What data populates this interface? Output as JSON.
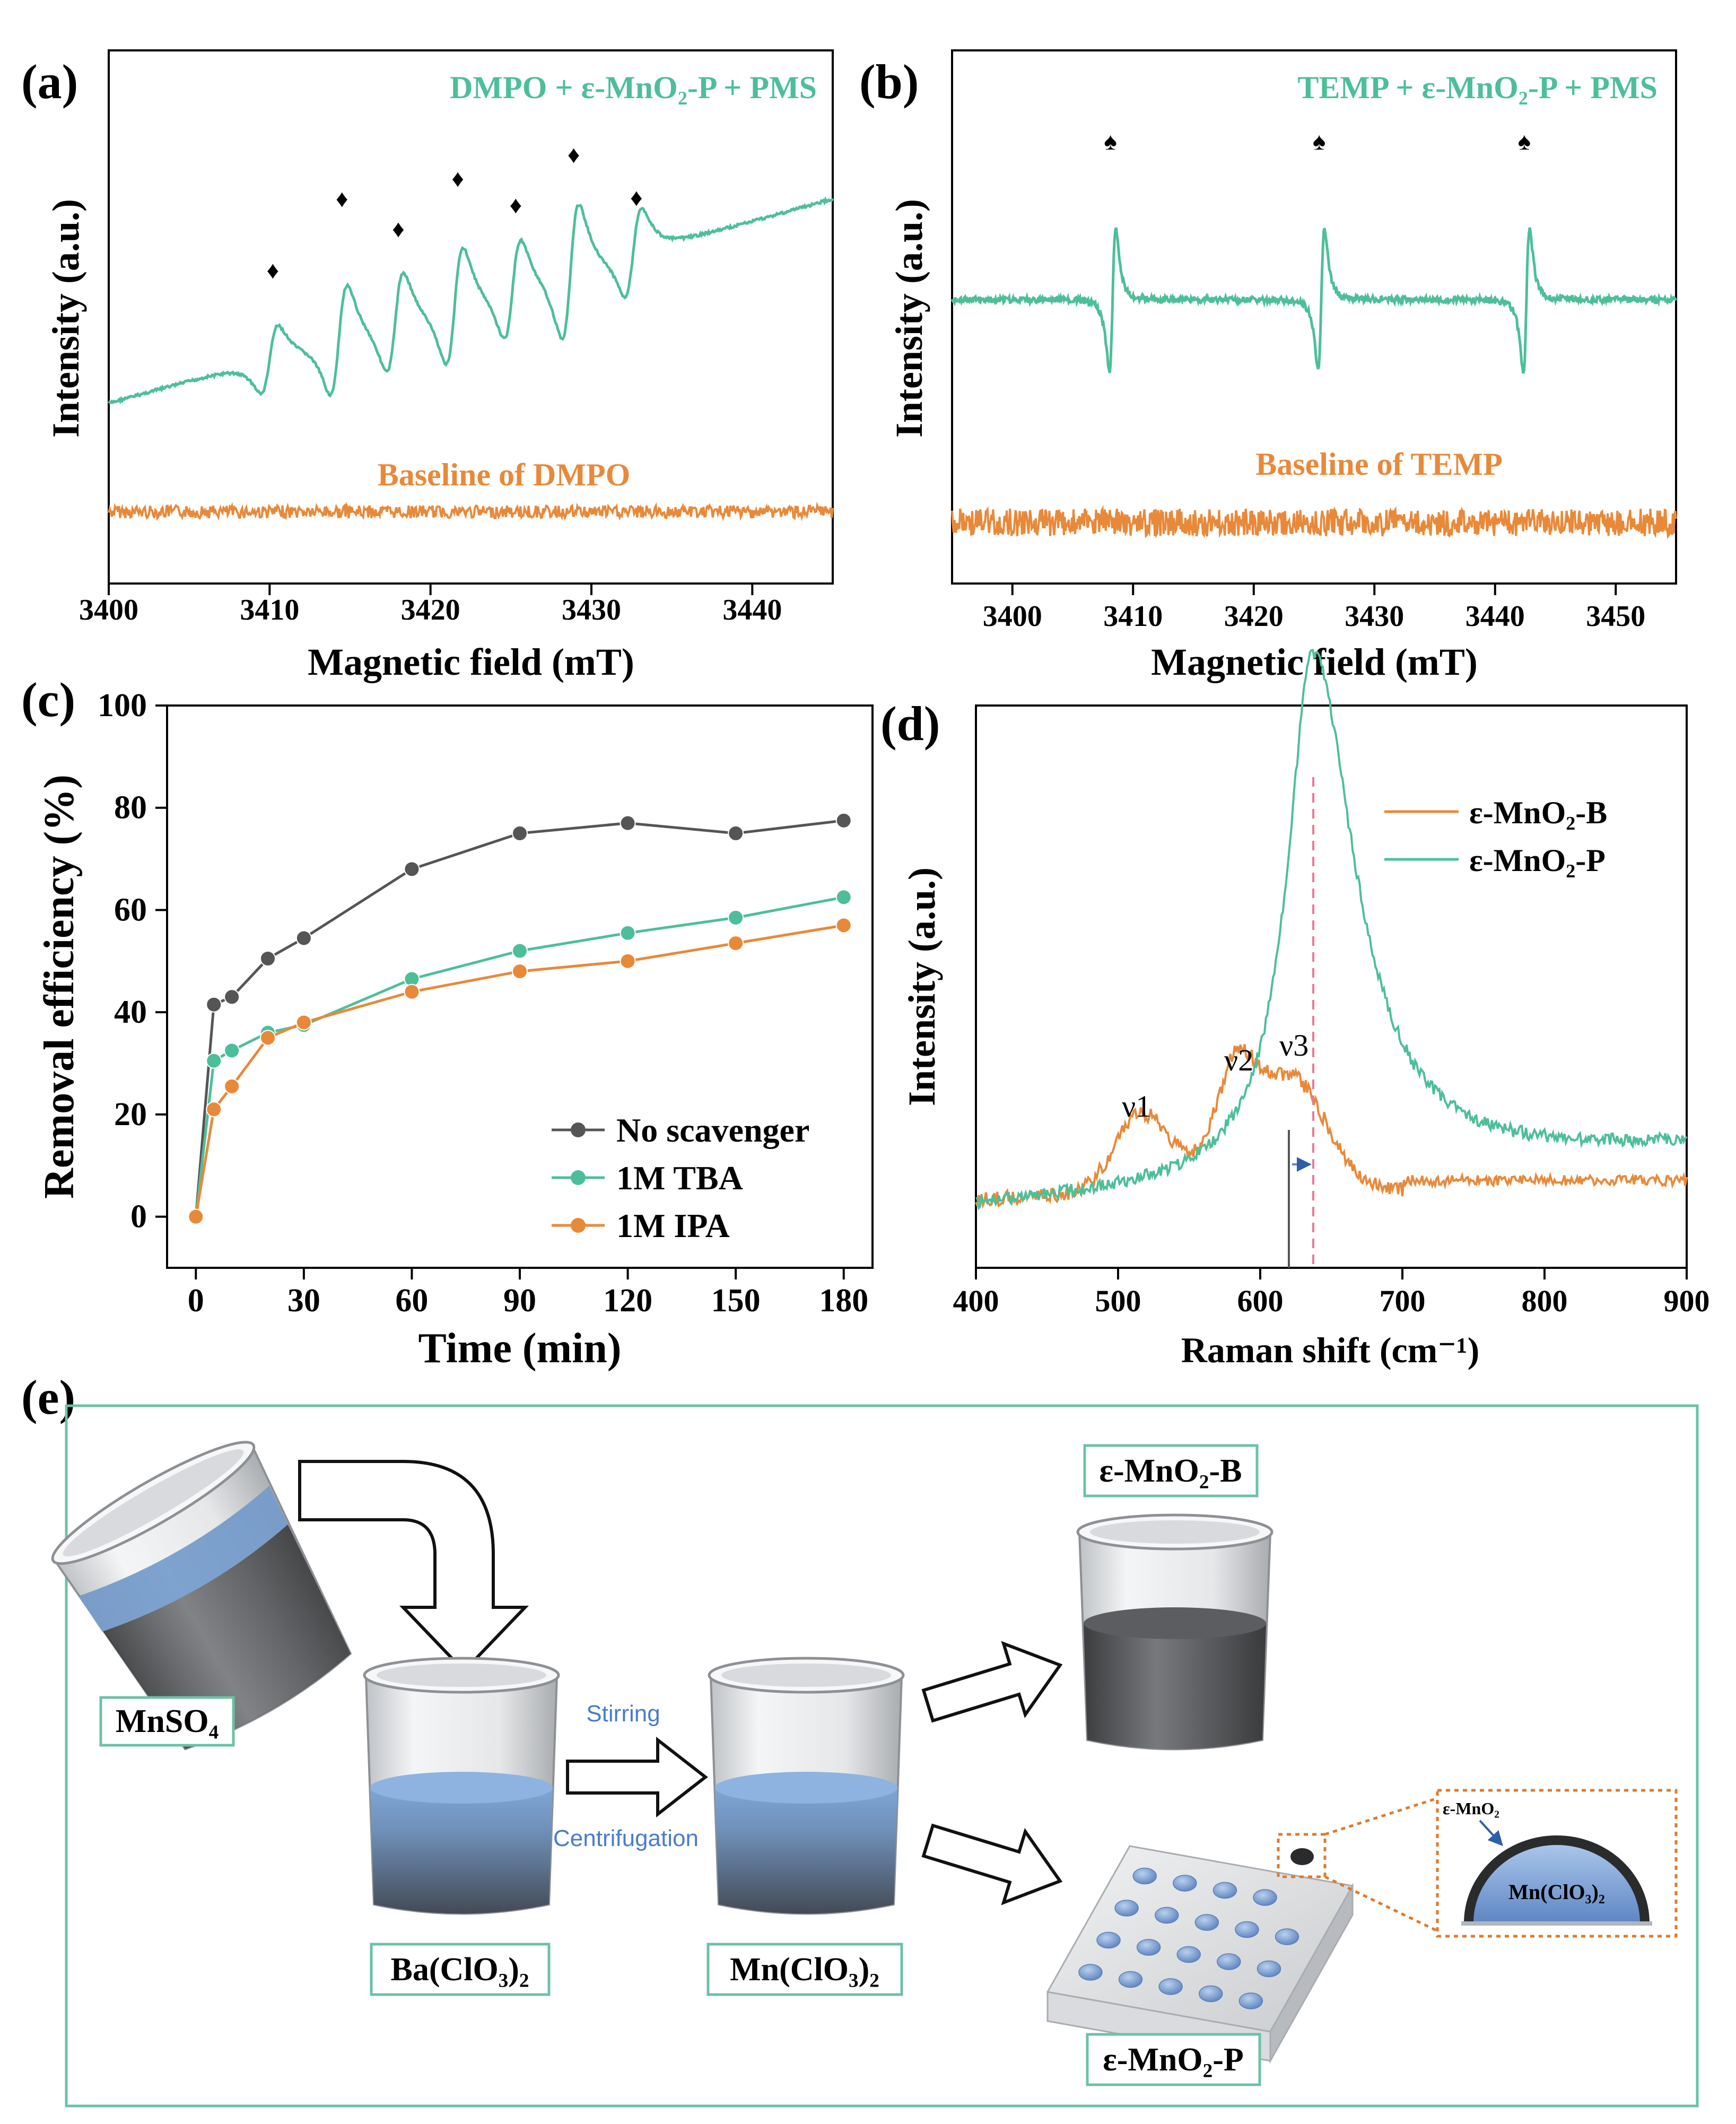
{
  "colors": {
    "green": "#4dbf98",
    "orange": "#e8893a",
    "gray": "#555555",
    "pink": "#e87a96",
    "blue": "#4a7cc9",
    "box": "#6cc2a3",
    "dotted": "#e07a2a"
  },
  "panels": {
    "a": {
      "label": "(a)"
    },
    "b": {
      "label": "(b)"
    },
    "c": {
      "label": "(c)"
    },
    "d": {
      "label": "(d)"
    },
    "e": {
      "label": "(e)"
    }
  },
  "chart_data": [
    {
      "id": "a",
      "type": "line",
      "xlabel": "Magnetic field (mT)",
      "ylabel": "Intensity (a.u.)",
      "xlim": [
        3400,
        3445
      ],
      "xticks": [
        3400,
        3410,
        3420,
        3430,
        3440
      ],
      "series": [
        {
          "name": "DMPO + ε-MnO₂-P + PMS",
          "color": "green",
          "peaks": [
            3410,
            3414.3,
            3417.8,
            3421.5,
            3425.1,
            3428.7,
            3432.6
          ]
        },
        {
          "name": "Baseline of DMPO",
          "color": "orange"
        }
      ],
      "marker_symbol": "♦"
    },
    {
      "id": "b",
      "type": "line",
      "xlabel": "Magnetic field (mT)",
      "ylabel": "Intensity (a.u.)",
      "xlim": [
        3395,
        3455
      ],
      "xticks": [
        3400,
        3410,
        3420,
        3430,
        3440,
        3450
      ],
      "series": [
        {
          "name": "TEMP + ε-MnO₂-P + PMS",
          "color": "green",
          "peaks": [
            3408.3,
            3425.6,
            3442.6
          ]
        },
        {
          "name": "Baseline of TEMP",
          "color": "orange"
        }
      ],
      "marker_symbol": "♠"
    },
    {
      "id": "c",
      "type": "line",
      "xlabel": "Time (min)",
      "ylabel": "Removal efficiency (%)",
      "xlim": [
        -8,
        188
      ],
      "ylim": [
        -10,
        100
      ],
      "xticks": [
        0,
        30,
        60,
        90,
        120,
        150,
        180
      ],
      "yticks": [
        0,
        20,
        40,
        60,
        80,
        100
      ],
      "x": [
        0,
        5,
        10,
        20,
        30,
        60,
        90,
        120,
        150,
        180
      ],
      "series": [
        {
          "name": "No scavenger",
          "color": "gray",
          "values": [
            0,
            41.5,
            43,
            50.5,
            54.5,
            68,
            75,
            77,
            75,
            77.5
          ]
        },
        {
          "name": "1M TBA",
          "color": "green",
          "values": [
            0,
            30.5,
            32.5,
            36,
            37.5,
            46.5,
            52,
            55.5,
            58.5,
            62.5
          ]
        },
        {
          "name": "1M IPA",
          "color": "orange",
          "values": [
            0,
            21,
            25.5,
            35,
            38,
            44,
            48,
            50,
            53.5,
            57
          ]
        }
      ]
    },
    {
      "id": "d",
      "type": "line",
      "xlabel": "Raman shift (cm⁻¹)",
      "ylabel": "Intensity (a.u.)",
      "xlim": [
        400,
        900
      ],
      "xticks": [
        400,
        500,
        600,
        700,
        800,
        900
      ],
      "series": [
        {
          "name": "ε-MnO₂-B",
          "color": "orange"
        },
        {
          "name": "ε-MnO₂-P",
          "color": "green"
        }
      ],
      "annotations": [
        "ν1",
        "ν2",
        "ν3"
      ],
      "reference_lines": [
        620,
        637
      ]
    }
  ],
  "schematic": {
    "labels": {
      "mnso4": "MnSO₄",
      "baclo3": "Ba(ClO₃)₂",
      "mnclo3": "Mn(ClO₃)₂",
      "mno2b": "ε-MnO₂-B",
      "mno2p": "ε-MnO₂-P"
    },
    "stirring": "Stirring",
    "centrifugation": "Centrifugation",
    "inset_shell": "ε-MnO₂",
    "inset_core": "Mn(ClO₃)₂"
  }
}
